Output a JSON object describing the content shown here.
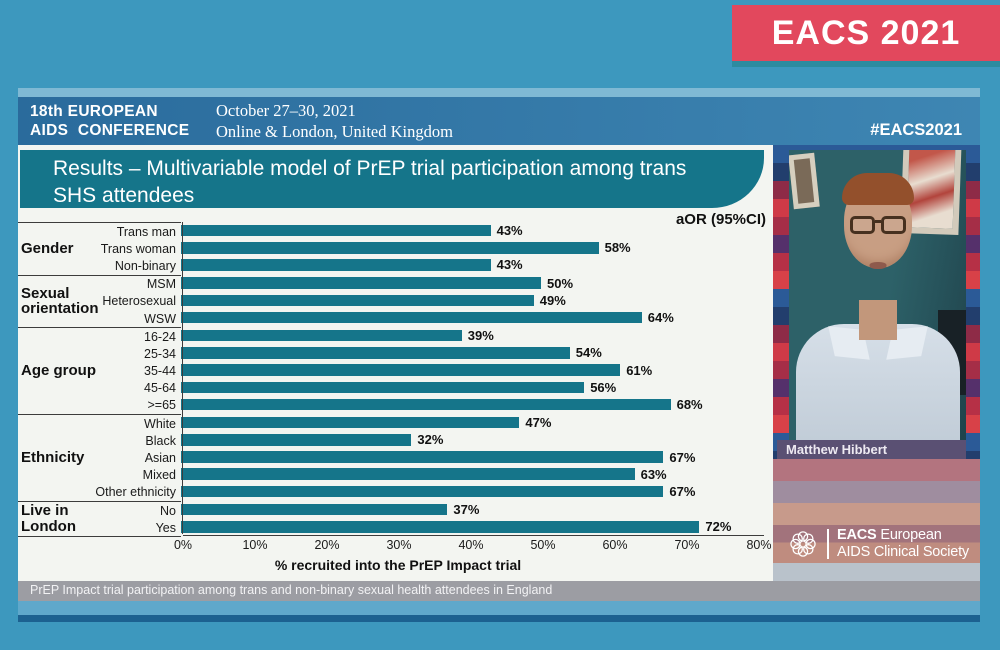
{
  "banner": {
    "label": "EACS 2021"
  },
  "header": {
    "conference_line1": "18th EUROPEAN",
    "conference_line2": "AIDS CONFERENCE",
    "date": "October 27–30, 2021",
    "location": "Online & London, United Kingdom",
    "hashtag": "#EACS2021"
  },
  "slide": {
    "title": "Results – Multivariable model of PrEP trial participation among trans SHS attendees",
    "annotation": "aOR (95%CI)",
    "caption": "PrEP Impact trial participation among trans and non-binary sexual health attendees in England"
  },
  "chart_data": {
    "type": "bar",
    "orientation": "horizontal",
    "title": "Results – Multivariable model of PrEP trial participation among trans SHS attendees",
    "xlabel": "% recruited into the PrEP Impact trial",
    "xlim": [
      0,
      80
    ],
    "x_ticks": [
      "0%",
      "10%",
      "20%",
      "30%",
      "40%",
      "50%",
      "60%",
      "70%",
      "80%"
    ],
    "annotation": "aOR (95%CI)",
    "bar_color": "#15758a",
    "grid": false,
    "legend": false,
    "groups": [
      {
        "label": "Gender",
        "items": [
          {
            "label": "Trans man",
            "value": 43
          },
          {
            "label": "Trans woman",
            "value": 58
          },
          {
            "label": "Non-binary",
            "value": 43
          }
        ]
      },
      {
        "label": "Sexual orientation",
        "items": [
          {
            "label": "MSM",
            "value": 50
          },
          {
            "label": "Heterosexual",
            "value": 49
          },
          {
            "label": "WSW",
            "value": 64
          }
        ]
      },
      {
        "label": "Age group",
        "items": [
          {
            "label": "16-24",
            "value": 39
          },
          {
            "label": "25-34",
            "value": 54
          },
          {
            "label": "35-44",
            "value": 61
          },
          {
            "label": "45-64",
            "value": 56
          },
          {
            "label": ">=65",
            "value": 68
          }
        ]
      },
      {
        "label": "Ethnicity",
        "items": [
          {
            "label": "White",
            "value": 47
          },
          {
            "label": "Black",
            "value": 32
          },
          {
            "label": "Asian",
            "value": 67
          },
          {
            "label": "Mixed",
            "value": 63
          },
          {
            "label": "Other ethnicity",
            "value": 67
          }
        ]
      },
      {
        "label": "Live in London",
        "items": [
          {
            "label": "No",
            "value": 37
          },
          {
            "label": "Yes",
            "value": 72
          }
        ]
      }
    ]
  },
  "speaker": {
    "name": "Matthew Hibbert"
  },
  "logo": {
    "org": "EACS",
    "line1_rest": "European",
    "line2": "AIDS Clinical Society"
  },
  "colors": {
    "page_background": "#3d98be",
    "banner_red": "#e2485d",
    "banner_underline_teal": "#2d8ba0",
    "header_blue": "#2e6f9f",
    "title_teal": "#15758a",
    "bar_teal": "#15758a",
    "slide_background": "#f3f5f1",
    "caption_gray": "#9c9da3",
    "name_bar_purple": "#5a5073",
    "logo_band_salmon": "#bf8c7f"
  }
}
